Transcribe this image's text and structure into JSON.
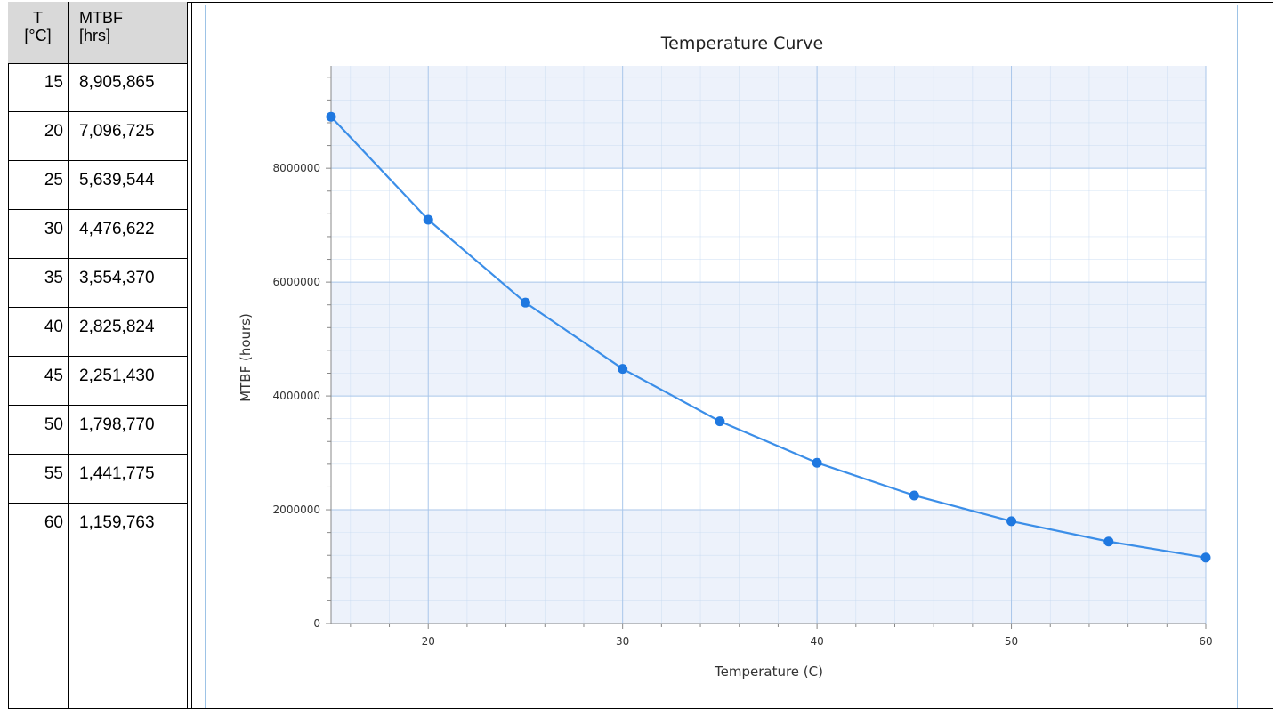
{
  "table": {
    "headers": {
      "temp_line1": "T",
      "temp_line2": "[°C]",
      "mtbf_line1": "MTBF",
      "mtbf_line2": "[hrs]"
    },
    "rows": [
      {
        "t": "15",
        "mtbf": "8,905,865"
      },
      {
        "t": "20",
        "mtbf": "7,096,725"
      },
      {
        "t": "25",
        "mtbf": "5,639,544"
      },
      {
        "t": "30",
        "mtbf": "4,476,622"
      },
      {
        "t": "35",
        "mtbf": "3,554,370"
      },
      {
        "t": "40",
        "mtbf": "2,825,824"
      },
      {
        "t": "45",
        "mtbf": "2,251,430"
      },
      {
        "t": "50",
        "mtbf": "1,798,770"
      },
      {
        "t": "55",
        "mtbf": "1,441,775"
      },
      {
        "t": "60",
        "mtbf": "1,159,763"
      }
    ]
  },
  "chart_data": {
    "type": "line",
    "title": "Temperature Curve",
    "xlabel": "Temperature (C)",
    "ylabel": "MTBF (hours)",
    "x": [
      15,
      20,
      25,
      30,
      35,
      40,
      45,
      50,
      55,
      60
    ],
    "series": [
      {
        "values": [
          8905865,
          7096725,
          5639544,
          4476622,
          3554370,
          2825824,
          2251430,
          1798770,
          1441775,
          1159763
        ]
      }
    ],
    "xlim": [
      15,
      60
    ],
    "ylim": [
      0,
      9800000
    ],
    "x_ticks": [
      20,
      30,
      40,
      50,
      60
    ],
    "y_ticks": [
      0,
      2000000,
      4000000,
      6000000,
      8000000
    ],
    "y_tick_labels": [
      "0",
      "2000000",
      "4000000",
      "6000000",
      "8000000"
    ],
    "grid": true,
    "colors": {
      "line": "#3b8ee8",
      "marker": "#1f78e0",
      "band": "#edf2fb",
      "grid": "#c5d9f1"
    }
  }
}
